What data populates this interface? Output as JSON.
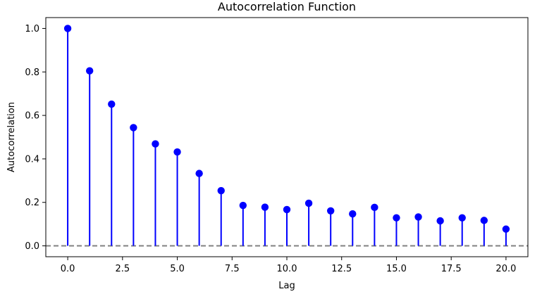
{
  "chart_data": {
    "type": "stem",
    "title": "Autocorrelation Function",
    "xlabel": "Lag",
    "ylabel": "Autocorrelation",
    "xlim": [
      -1.0,
      21.0
    ],
    "ylim": [
      -0.05,
      1.05
    ],
    "x_ticks": [
      0.0,
      2.5,
      5.0,
      7.5,
      10.0,
      12.5,
      15.0,
      17.5,
      20.0
    ],
    "x_tick_labels": [
      "0.0",
      "2.5",
      "5.0",
      "7.5",
      "10.0",
      "12.5",
      "15.0",
      "17.5",
      "20.0"
    ],
    "y_ticks": [
      0.0,
      0.2,
      0.4,
      0.6,
      0.8,
      1.0
    ],
    "y_tick_labels": [
      "0.0",
      "0.2",
      "0.4",
      "0.6",
      "0.8",
      "1.0"
    ],
    "grid": false,
    "baseline": {
      "y": 0.0,
      "style": "dashed",
      "color": "#808080"
    },
    "series": [
      {
        "color": "#0000ff",
        "x": [
          0,
          1,
          2,
          3,
          4,
          5,
          6,
          7,
          8,
          9,
          10,
          11,
          12,
          13,
          14,
          15,
          16,
          17,
          18,
          19,
          20
        ],
        "y": [
          1.0,
          0.805,
          0.652,
          0.544,
          0.469,
          0.432,
          0.333,
          0.254,
          0.186,
          0.178,
          0.167,
          0.196,
          0.161,
          0.147,
          0.177,
          0.129,
          0.133,
          0.115,
          0.129,
          0.117,
          0.077
        ]
      }
    ]
  }
}
